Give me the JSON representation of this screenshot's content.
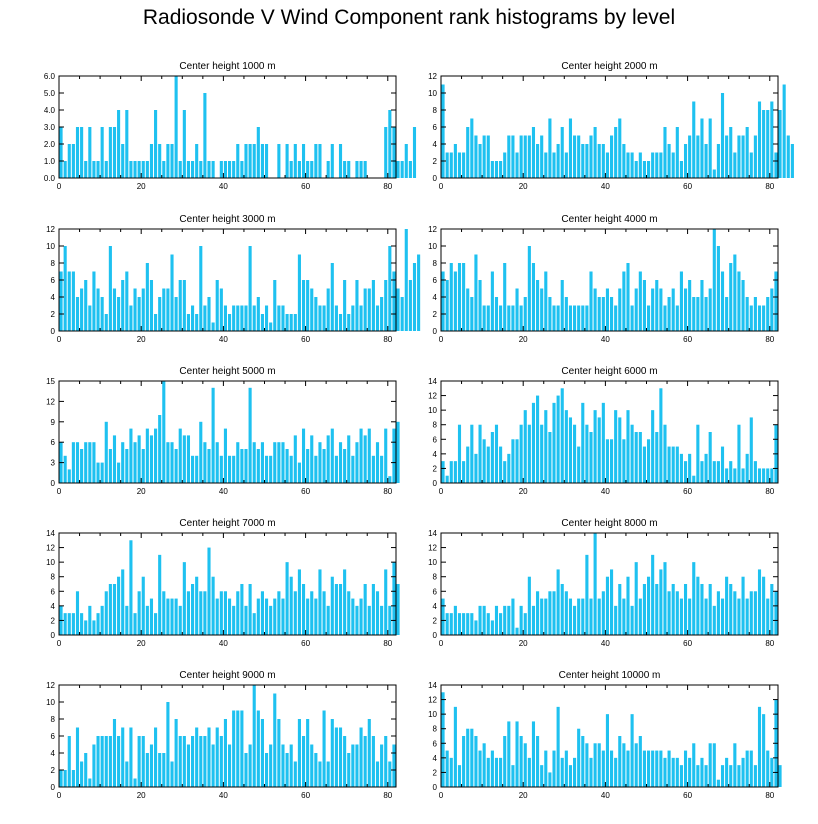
{
  "title": "Radiosonde V Wind Component rank histograms by level",
  "chart_data": [
    {
      "type": "bar",
      "title": "Center height 1000 m",
      "xlim": [
        0,
        82
      ],
      "ylim": [
        0,
        6
      ],
      "xticks": [
        0,
        20,
        40,
        60,
        80
      ],
      "yticks": [
        0,
        1,
        2,
        3,
        4,
        5,
        6
      ],
      "ytick_labels": [
        "0.0",
        "1.0",
        "2.0",
        "3.0",
        "4.0",
        "5.0",
        "6.0"
      ],
      "values": [
        3,
        1,
        2,
        2,
        3,
        3,
        1,
        3,
        1,
        1,
        3,
        1,
        3,
        3,
        4,
        2,
        4,
        1,
        1,
        1,
        1,
        1,
        2,
        4,
        2,
        1,
        2,
        2,
        6,
        1,
        4,
        1,
        1,
        2,
        1,
        5,
        1,
        1,
        0,
        1,
        1,
        1,
        1,
        2,
        1,
        2,
        2,
        2,
        3,
        2,
        2,
        0,
        0,
        2,
        0,
        2,
        1,
        2,
        1,
        2,
        1,
        1,
        2,
        2,
        0,
        1,
        2,
        0,
        2,
        1,
        1,
        0,
        1,
        1,
        1,
        0,
        0,
        0,
        0,
        3,
        4,
        3,
        1,
        1,
        2,
        1,
        3
      ]
    },
    {
      "type": "bar",
      "title": "Center height 2000 m",
      "xlim": [
        0,
        82
      ],
      "ylim": [
        0,
        12
      ],
      "xticks": [
        0,
        20,
        40,
        60,
        80
      ],
      "yticks": [
        0,
        2,
        4,
        6,
        8,
        10,
        12
      ],
      "ytick_labels": [
        "0",
        "2",
        "4",
        "6",
        "8",
        "10",
        "12"
      ],
      "values": [
        11,
        3,
        3,
        4,
        3,
        3,
        6,
        7,
        5,
        4,
        5,
        5,
        2,
        2,
        2,
        3,
        5,
        5,
        3,
        5,
        5,
        5,
        6,
        4,
        5,
        3,
        7,
        3,
        4,
        6,
        3,
        7,
        5,
        5,
        4,
        4,
        5,
        6,
        4,
        4,
        3,
        5,
        6,
        7,
        4,
        3,
        3,
        2,
        3,
        2,
        2,
        3,
        3,
        3,
        6,
        4,
        3,
        6,
        2,
        4,
        5,
        9,
        5,
        7,
        4,
        7,
        1,
        4,
        10,
        5,
        6,
        3,
        5,
        5,
        6,
        3,
        5,
        9,
        8,
        8,
        9,
        3,
        8,
        11,
        5,
        4
      ]
    },
    {
      "type": "bar",
      "title": "Center height 3000 m",
      "xlim": [
        0,
        82
      ],
      "ylim": [
        0,
        12
      ],
      "xticks": [
        0,
        20,
        40,
        60,
        80
      ],
      "yticks": [
        0,
        2,
        4,
        6,
        8,
        10,
        12
      ],
      "ytick_labels": [
        "0",
        "2",
        "4",
        "6",
        "8",
        "10",
        "12"
      ],
      "values": [
        7,
        10,
        7,
        7,
        4,
        5,
        6,
        3,
        7,
        5,
        4,
        2,
        10,
        5,
        4,
        6,
        7,
        3,
        5,
        4,
        5,
        8,
        6,
        2,
        4,
        5,
        5,
        9,
        4,
        6,
        6,
        2,
        3,
        2,
        10,
        3,
        4,
        1,
        6,
        5,
        3,
        2,
        3,
        3,
        3,
        3,
        10,
        3,
        4,
        2,
        3,
        1,
        6,
        3,
        3,
        2,
        2,
        2,
        9,
        6,
        6,
        5,
        4,
        3,
        3,
        5,
        8,
        3,
        2,
        6,
        2,
        3,
        6,
        3,
        5,
        5,
        6,
        3,
        4,
        6,
        10,
        7,
        5,
        4,
        12,
        6,
        8,
        9
      ]
    },
    {
      "type": "bar",
      "title": "Center height 4000 m",
      "xlim": [
        0,
        82
      ],
      "ylim": [
        0,
        12
      ],
      "xticks": [
        0,
        20,
        40,
        60,
        80
      ],
      "yticks": [
        0,
        2,
        4,
        6,
        8,
        10,
        12
      ],
      "ytick_labels": [
        "0",
        "2",
        "4",
        "6",
        "8",
        "10",
        "12"
      ],
      "values": [
        7,
        6,
        8,
        7,
        8,
        8,
        5,
        4,
        9,
        6,
        3,
        3,
        7,
        4,
        3,
        8,
        3,
        3,
        5,
        3,
        4,
        10,
        8,
        6,
        5,
        7,
        4,
        3,
        3,
        6,
        4,
        3,
        3,
        3,
        3,
        3,
        7,
        5,
        4,
        4,
        5,
        4,
        3,
        5,
        7,
        8,
        3,
        5,
        7,
        6,
        3,
        5,
        6,
        5,
        3,
        4,
        5,
        3,
        7,
        5,
        6,
        4,
        4,
        6,
        4,
        5,
        12,
        10,
        7,
        4,
        8,
        9,
        7,
        6,
        4,
        3,
        4,
        3,
        3,
        4,
        5,
        7
      ]
    },
    {
      "type": "bar",
      "title": "Center height 5000 m",
      "xlim": [
        0,
        82
      ],
      "ylim": [
        0,
        15
      ],
      "xticks": [
        0,
        20,
        40,
        60,
        80
      ],
      "yticks": [
        0,
        3,
        6,
        9,
        12,
        15
      ],
      "ytick_labels": [
        "0",
        "3",
        "6",
        "9",
        "12",
        "15"
      ],
      "values": [
        6,
        4,
        2,
        6,
        6,
        5,
        6,
        6,
        6,
        3,
        3,
        9,
        5,
        7,
        3,
        6,
        5,
        8,
        6,
        7,
        5,
        8,
        7,
        8,
        10,
        15,
        6,
        6,
        5,
        8,
        7,
        7,
        4,
        4,
        9,
        6,
        5,
        14,
        6,
        4,
        8,
        4,
        4,
        6,
        5,
        5,
        14,
        6,
        5,
        6,
        4,
        4,
        6,
        6,
        6,
        5,
        4,
        7,
        3,
        8,
        5,
        7,
        4,
        6,
        5,
        7,
        8,
        4,
        6,
        5,
        7,
        4,
        6,
        8,
        7,
        8,
        4,
        6,
        4,
        8,
        1,
        8,
        9
      ]
    },
    {
      "type": "bar",
      "title": "Center height 6000 m",
      "xlim": [
        0,
        82
      ],
      "ylim": [
        0,
        14
      ],
      "xticks": [
        0,
        20,
        40,
        60,
        80
      ],
      "yticks": [
        0,
        2,
        4,
        6,
        8,
        10,
        12,
        14
      ],
      "ytick_labels": [
        "0",
        "2",
        "4",
        "6",
        "8",
        "10",
        "12",
        "14"
      ],
      "values": [
        3,
        1,
        3,
        3,
        8,
        3,
        5,
        8,
        4,
        8,
        6,
        5,
        7,
        8,
        5,
        3,
        4,
        6,
        6,
        8,
        10,
        8,
        11,
        12,
        8,
        10,
        7,
        11,
        12,
        13,
        10,
        9,
        8,
        5,
        11,
        8,
        7,
        10,
        9,
        11,
        6,
        6,
        10,
        9,
        6,
        10,
        8,
        7,
        7,
        5,
        6,
        10,
        7,
        13,
        8,
        5,
        5,
        5,
        4,
        3,
        4,
        1,
        8,
        3,
        4,
        7,
        3,
        3,
        5,
        2,
        3,
        2,
        8,
        2,
        4,
        9,
        3,
        2,
        2,
        2,
        2,
        8
      ]
    },
    {
      "type": "bar",
      "title": "Center height 7000 m",
      "xlim": [
        0,
        82
      ],
      "ylim": [
        0,
        14
      ],
      "xticks": [
        0,
        20,
        40,
        60,
        80
      ],
      "yticks": [
        0,
        2,
        4,
        6,
        8,
        10,
        12,
        14
      ],
      "ytick_labels": [
        "0",
        "2",
        "4",
        "6",
        "8",
        "10",
        "12",
        "14"
      ],
      "values": [
        4,
        3,
        3,
        3,
        6,
        3,
        2,
        4,
        2,
        3,
        4,
        6,
        7,
        7,
        8,
        9,
        4,
        13,
        3,
        6,
        8,
        4,
        5,
        3,
        11,
        6,
        5,
        5,
        5,
        4,
        10,
        6,
        7,
        8,
        6,
        6,
        12,
        8,
        5,
        6,
        6,
        5,
        4,
        6,
        7,
        4,
        7,
        3,
        5,
        6,
        5,
        4,
        5,
        6,
        5,
        10,
        8,
        6,
        9,
        7,
        5,
        6,
        5,
        9,
        6,
        4,
        8,
        7,
        7,
        9,
        6,
        5,
        4,
        5,
        7,
        4,
        7,
        6,
        4,
        9,
        4,
        10,
        7
      ]
    },
    {
      "type": "bar",
      "title": "Center height 8000 m",
      "xlim": [
        0,
        82
      ],
      "ylim": [
        0,
        14
      ],
      "xticks": [
        0,
        20,
        40,
        60,
        80
      ],
      "yticks": [
        0,
        2,
        4,
        6,
        8,
        10,
        12,
        14
      ],
      "ytick_labels": [
        "0",
        "2",
        "4",
        "6",
        "8",
        "10",
        "12",
        "14"
      ],
      "values": [
        5,
        3,
        3,
        4,
        3,
        3,
        3,
        3,
        2,
        4,
        4,
        3,
        2,
        4,
        3,
        4,
        4,
        5,
        1,
        4,
        3,
        8,
        4,
        6,
        5,
        5,
        6,
        6,
        9,
        7,
        6,
        5,
        4,
        5,
        5,
        11,
        5,
        14,
        5,
        6,
        8,
        9,
        4,
        7,
        5,
        8,
        4,
        10,
        5,
        7,
        8,
        11,
        7,
        9,
        10,
        6,
        7,
        6,
        5,
        7,
        5,
        10,
        8,
        7,
        5,
        7,
        4,
        6,
        5,
        8,
        7,
        6,
        5,
        8,
        5,
        6,
        6,
        9,
        8,
        5,
        7,
        6
      ]
    },
    {
      "type": "bar",
      "title": "Center height 9000 m",
      "xlim": [
        0,
        82
      ],
      "ylim": [
        0,
        12
      ],
      "xticks": [
        0,
        20,
        40,
        60,
        80
      ],
      "yticks": [
        0,
        2,
        4,
        6,
        8,
        10,
        12
      ],
      "ytick_labels": [
        "0",
        "2",
        "4",
        "6",
        "8",
        "10",
        "12"
      ],
      "values": [
        2,
        2,
        6,
        2,
        7,
        3,
        4,
        1,
        5,
        6,
        6,
        6,
        6,
        8,
        6,
        7,
        3,
        7,
        1,
        6,
        6,
        4,
        5,
        7,
        4,
        4,
        10,
        3,
        8,
        6,
        6,
        5,
        6,
        7,
        6,
        6,
        7,
        5,
        7,
        6,
        8,
        5,
        9,
        9,
        9,
        4,
        5,
        12,
        9,
        8,
        4,
        5,
        11,
        8,
        5,
        4,
        5,
        3,
        8,
        6,
        8,
        5,
        4,
        3,
        9,
        3,
        8,
        7,
        7,
        6,
        4,
        5,
        5,
        7,
        6,
        8,
        6,
        3,
        5,
        6,
        3,
        5
      ]
    },
    {
      "type": "bar",
      "title": "Center height 10000 m",
      "xlim": [
        0,
        82
      ],
      "ylim": [
        0,
        14
      ],
      "xticks": [
        0,
        20,
        40,
        60,
        80
      ],
      "yticks": [
        0,
        2,
        4,
        6,
        8,
        10,
        12,
        14
      ],
      "ytick_labels": [
        "0",
        "2",
        "4",
        "6",
        "8",
        "10",
        "12",
        "14"
      ],
      "values": [
        13,
        5,
        4,
        11,
        3,
        7,
        8,
        8,
        7,
        5,
        6,
        4,
        5,
        4,
        4,
        7,
        9,
        3,
        9,
        7,
        6,
        4,
        9,
        7,
        3,
        5,
        2,
        5,
        11,
        4,
        5,
        3,
        4,
        8,
        7,
        6,
        4,
        6,
        6,
        5,
        10,
        5,
        4,
        7,
        6,
        5,
        10,
        6,
        7,
        5,
        5,
        5,
        5,
        5,
        4,
        5,
        4,
        4,
        3,
        5,
        4,
        6,
        3,
        4,
        3,
        6,
        6,
        1,
        3,
        4,
        3,
        6,
        3,
        4,
        5,
        5,
        3,
        11,
        10,
        5,
        4,
        12,
        3
      ]
    }
  ]
}
